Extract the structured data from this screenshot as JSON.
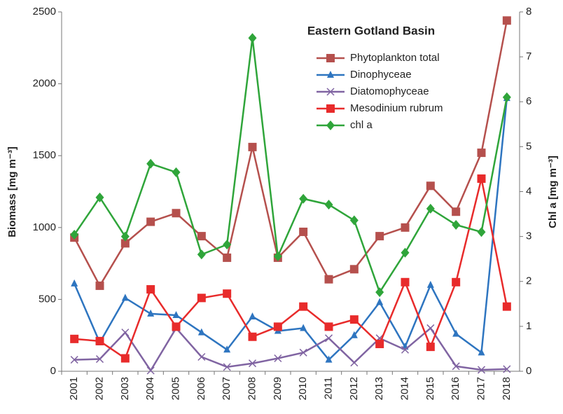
{
  "chart_data": {
    "type": "line",
    "title": "Eastern Gotland Basin",
    "ylabel": "Biomass [mg m⁻³]",
    "y2label": "Chl a [mg m⁻³]",
    "categories": [
      "2001",
      "2002",
      "2003",
      "2004",
      "2005",
      "2006",
      "2007",
      "2008",
      "2009",
      "2010",
      "2011",
      "2012",
      "2013",
      "2014",
      "2015",
      "2016",
      "2017",
      "2018"
    ],
    "ylim": [
      0,
      2500
    ],
    "yticks": [
      0,
      500,
      1000,
      1500,
      2000,
      2500
    ],
    "y2lim": [
      0,
      8
    ],
    "y2ticks": [
      0,
      1,
      2,
      3,
      4,
      5,
      6,
      7,
      8
    ],
    "grid": false,
    "series": [
      {
        "name": "Phytoplankton total",
        "color": "#b5504d",
        "marker": "square",
        "values": [
          930,
          595,
          890,
          1040,
          1100,
          940,
          790,
          1560,
          790,
          970,
          640,
          710,
          940,
          1000,
          1290,
          1110,
          1520,
          2440
        ]
      },
      {
        "name": "Dinophyceae",
        "color": "#2e75c0",
        "marker": "triangle",
        "values": [
          610,
          200,
          510,
          400,
          390,
          270,
          150,
          380,
          280,
          300,
          80,
          250,
          480,
          170,
          600,
          260,
          130,
          1900
        ]
      },
      {
        "name": "Diatomophyceae",
        "color": "#8064a2",
        "marker": "x",
        "values": [
          80,
          85,
          270,
          5,
          300,
          100,
          30,
          55,
          90,
          130,
          230,
          60,
          230,
          150,
          300,
          35,
          10,
          15
        ]
      },
      {
        "name": "Mesodinium rubrum",
        "color": "#e82b2b",
        "marker": "square",
        "values": [
          225,
          210,
          90,
          570,
          310,
          510,
          540,
          240,
          310,
          450,
          310,
          360,
          190,
          620,
          170,
          620,
          1340,
          450
        ]
      },
      {
        "name": "chl a",
        "color": "#2fa53a",
        "marker": "diamond",
        "axis": "y2",
        "values": [
          3.04,
          3.87,
          3.0,
          4.62,
          4.43,
          2.6,
          2.82,
          7.42,
          2.56,
          3.84,
          3.71,
          3.36,
          1.76,
          2.64,
          3.62,
          3.26,
          3.1,
          6.1
        ]
      }
    ]
  }
}
